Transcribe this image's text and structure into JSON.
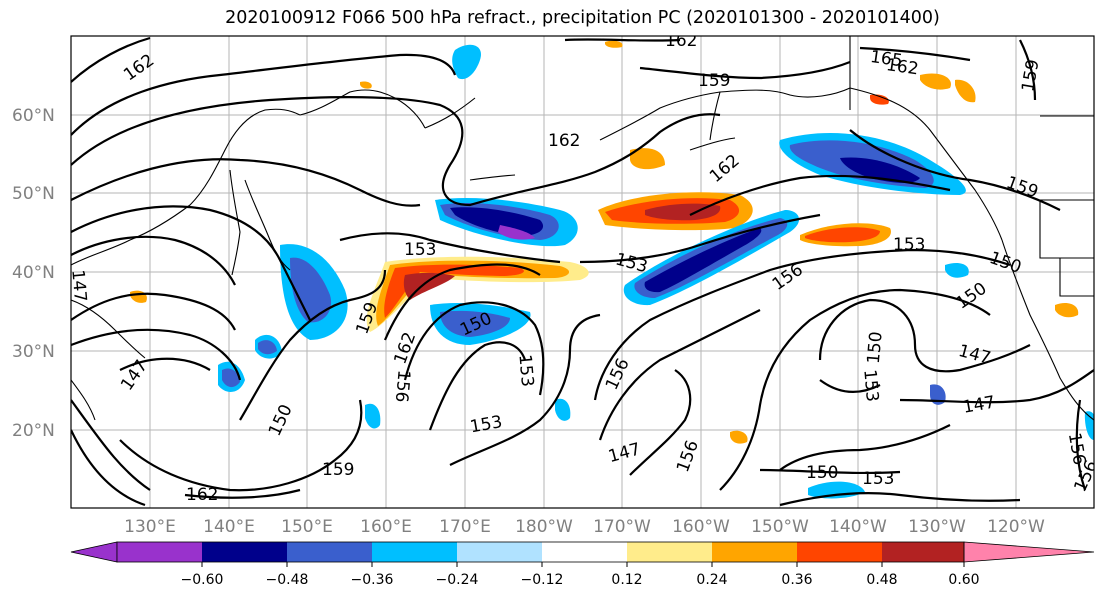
{
  "title": "2020100912 F066 500 hPa refract., precipitation PC (2020101300 - 2020101400)",
  "map": {
    "lat_labels": [
      "60°N",
      "50°N",
      "40°N",
      "30°N",
      "20°N"
    ],
    "lon_labels": [
      "130°E",
      "140°E",
      "150°E",
      "160°E",
      "170°E",
      "180°W",
      "170°W",
      "160°W",
      "150°W",
      "140°W",
      "130°W",
      "120°W"
    ],
    "contour_labels": [
      "162",
      "162",
      "165",
      "162",
      "159",
      "159",
      "162",
      "162",
      "159",
      "153",
      "153",
      "153",
      "156",
      "150",
      "159",
      "162",
      "150",
      "156",
      "156",
      "153",
      "150",
      "153",
      "147",
      "150",
      "147",
      "147",
      "150",
      "159",
      "162",
      "153",
      "147",
      "156",
      "150",
      "153",
      "147",
      "156",
      "156"
    ]
  },
  "colorbar": {
    "tick_labels": [
      "−0.60",
      "−0.48",
      "−0.36",
      "−0.24",
      "−0.12",
      "0.12",
      "0.24",
      "0.36",
      "0.48",
      "0.60"
    ],
    "colors": [
      "#9932cc",
      "#00008b",
      "#3a5fcd",
      "#00bfff",
      "#b0e2ff",
      "#ffffff",
      "#ffec8b",
      "#ffa500",
      "#ff4500",
      "#b22222",
      "#ff82ab"
    ]
  }
}
